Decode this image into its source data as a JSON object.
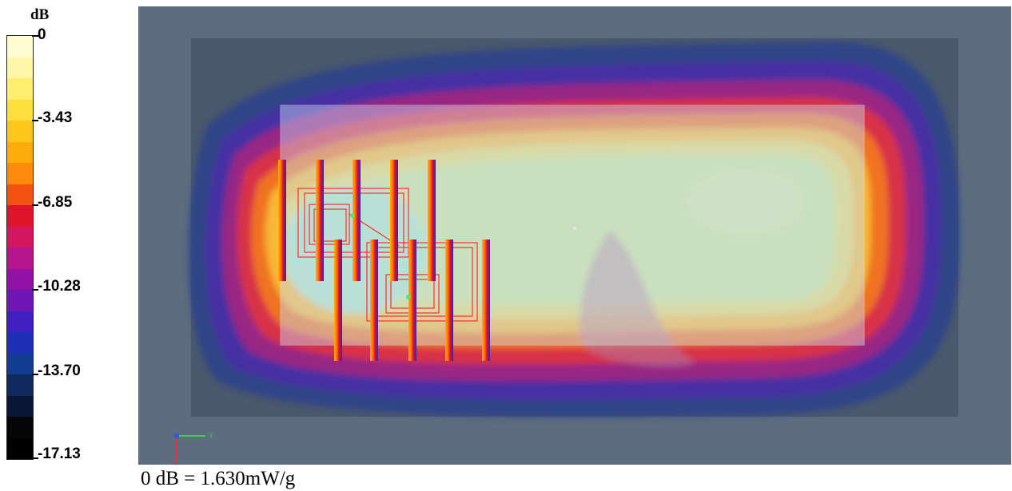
{
  "colorbar": {
    "unit": "dB",
    "labels": [
      "0",
      "-3.43",
      "-6.85",
      "-10.28",
      "-13.70",
      "-17.13"
    ],
    "colors": [
      "#fffbd2",
      "#fff6a8",
      "#ffee6e",
      "#ffdf3b",
      "#ffc71a",
      "#ffac0a",
      "#ff8a0c",
      "#f45210",
      "#e0132d",
      "#d21660",
      "#b5148f",
      "#9411a6",
      "#6e17b6",
      "#3f1fbf",
      "#1d2fb4",
      "#123c8f",
      "#0f2a5f",
      "#0a1633",
      "#050508",
      "#000000"
    ]
  },
  "viewport": {
    "axis_labels": [
      "Y",
      "X"
    ]
  },
  "footnote": "0 dB = 1.630mW/g"
}
